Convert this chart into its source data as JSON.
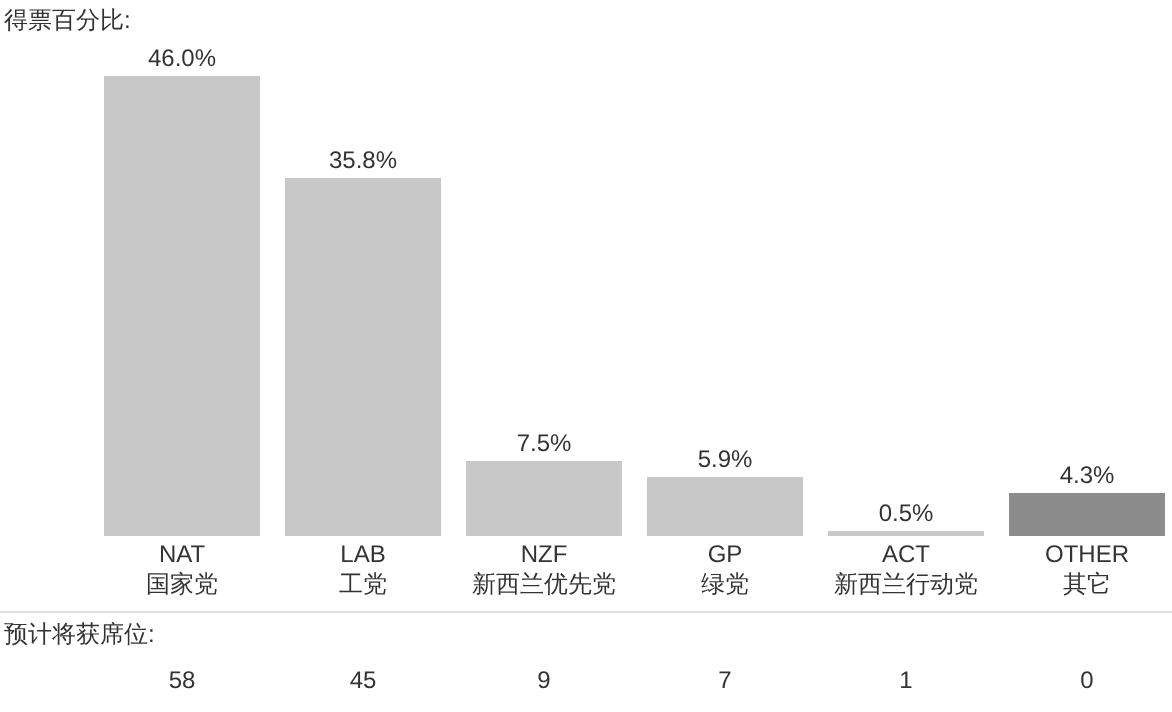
{
  "chart_data": {
    "type": "bar",
    "title": "得票百分比:",
    "categories": [
      "NAT\n国家党",
      "LAB\n工党",
      "NZF\n新西兰优先党",
      "GP\n绿党",
      "ACT\n新西兰行动党",
      "OTHER\n其它"
    ],
    "values": [
      46.0,
      35.8,
      7.5,
      5.9,
      0.5,
      4.3
    ],
    "colors": [
      "#c8c8c8",
      "#c8c8c8",
      "#c8c8c8",
      "#c8c8c8",
      "#c8c8c8",
      "#8c8c8c"
    ],
    "value_labels": [
      "46.0%",
      "35.8%",
      "7.5%",
      "5.9%",
      "0.5%",
      "4.3%"
    ],
    "annotations": [
      "预计将获席位:",
      "58",
      "45",
      "9",
      "7",
      "1",
      "0"
    ]
  }
}
